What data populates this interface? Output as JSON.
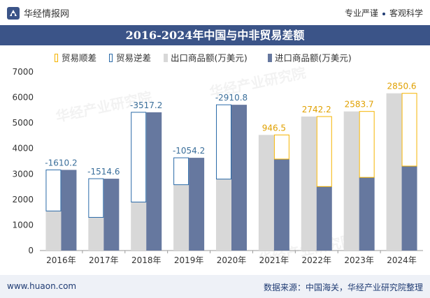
{
  "header": {
    "brand": "华经情报网",
    "tagline_left": "专业严谨",
    "tagline_right": "客观科学"
  },
  "title": "2016-2024年中国与中非贸易差额",
  "footer": {
    "url": "www.huaon.com",
    "source": "数据来源：中国海关，华经产业研究院整理"
  },
  "watermark": "华经产业研究院",
  "chart_data": {
    "type": "bar",
    "categories": [
      "2016年",
      "2017年",
      "2018年",
      "2019年",
      "2020年",
      "2021年",
      "2022年",
      "2023年",
      "2024年"
    ],
    "series": [
      {
        "name": "出口商品额(万美元)",
        "values": [
          1550,
          1300,
          1900,
          2580,
          2800,
          4530,
          5250,
          5450,
          6160
        ]
      },
      {
        "name": "进口商品额(万美元)",
        "values": [
          3160,
          2815,
          5417,
          3634,
          5711,
          3584,
          2508,
          2866,
          3309
        ]
      }
    ],
    "balance": {
      "surplus_name": "贸易顺差",
      "deficit_name": "贸易逆差",
      "labels": [
        "-1610.2",
        "-1514.6",
        "-3517.2",
        "-1054.2",
        "-2910.8",
        "946.5",
        "2742.2",
        "2583.7",
        "2850.6"
      ]
    },
    "ylim": [
      0,
      7000
    ],
    "yticks": [
      0,
      1000,
      2000,
      3000,
      4000,
      5000,
      6000,
      7000
    ],
    "legend_position": "top-center",
    "colors": {
      "export": "#d8d8d8",
      "import": "#66789f",
      "surplus": "#f5b400",
      "deficit": "#2a6aa8",
      "label_deficit": "#3a6e9a",
      "label_surplus": "#e0a000",
      "axis_text": "#333333"
    }
  }
}
